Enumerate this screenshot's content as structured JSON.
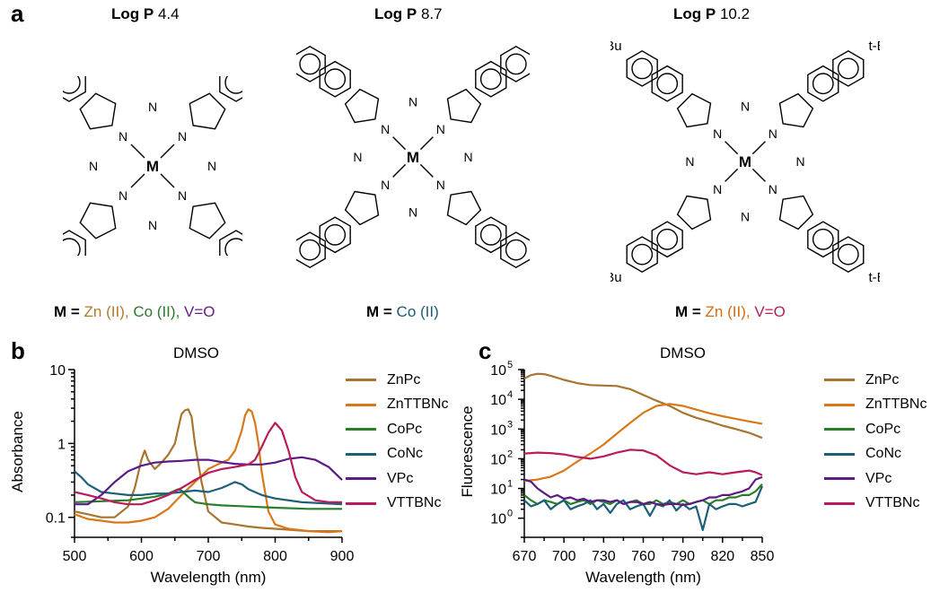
{
  "panels": {
    "a": "a",
    "b": "b",
    "c": "c"
  },
  "molecules": [
    {
      "logp_label": "Log P",
      "logp_value": "4.4",
      "metal": "M",
      "metals_prefix": "M =",
      "metals": [
        {
          "text": "Zn (II),",
          "color": "#b27a2d"
        },
        {
          "text": "Co (II),",
          "color": "#2b7a2b"
        },
        {
          "text": "V=O",
          "color": "#6a1b8a"
        }
      ]
    },
    {
      "logp_label": "Log P",
      "logp_value": "8.7",
      "metal": "M",
      "metals_prefix": "M =",
      "metals": [
        {
          "text": "Co (II)",
          "color": "#1c5a78"
        }
      ]
    },
    {
      "logp_label": "Log P",
      "logp_value": "10.2",
      "metal": "M",
      "metals_prefix": "M =",
      "substituent": "t-Bu",
      "metals": [
        {
          "text": "Zn (II),",
          "color": "#d46b0f"
        },
        {
          "text": "V=O",
          "color": "#b01f5a"
        }
      ]
    }
  ],
  "atom_label_n": "N",
  "chart_data": [
    {
      "type": "line",
      "title": "DMSO",
      "xlabel": "Wavelength (nm)",
      "ylabel": "Absorbance",
      "yscale": "log",
      "xlim": [
        500,
        900
      ],
      "ylim": [
        0.06,
        10
      ],
      "xticks": [
        "500",
        "600",
        "700",
        "800",
        "900"
      ],
      "yticks": [
        {
          "v": 0.1,
          "label": "0.1"
        },
        {
          "v": 1,
          "label": "1"
        },
        {
          "v": 10,
          "label": "10"
        }
      ],
      "legend_position": "right",
      "series": [
        {
          "name": "ZnPc",
          "color": "#a8742f",
          "x": [
            500,
            520,
            540,
            560,
            580,
            590,
            600,
            605,
            610,
            620,
            630,
            640,
            650,
            655,
            660,
            665,
            670,
            675,
            680,
            690,
            700,
            720,
            740,
            760,
            780,
            800,
            820,
            850,
            880,
            900
          ],
          "y": [
            0.12,
            0.11,
            0.1,
            0.1,
            0.14,
            0.25,
            0.6,
            0.8,
            0.6,
            0.45,
            0.55,
            0.7,
            1.0,
            1.6,
            2.5,
            2.8,
            2.9,
            2.3,
            1.0,
            0.3,
            0.12,
            0.085,
            0.08,
            0.075,
            0.072,
            0.07,
            0.068,
            0.065,
            0.065,
            0.065
          ]
        },
        {
          "name": "ZnTTBNc",
          "color": "#d9781b",
          "x": [
            500,
            520,
            540,
            560,
            580,
            600,
            620,
            640,
            660,
            680,
            700,
            710,
            720,
            730,
            740,
            750,
            755,
            760,
            765,
            770,
            775,
            780,
            790,
            800,
            820,
            850,
            880,
            900
          ],
          "y": [
            0.11,
            0.095,
            0.09,
            0.085,
            0.085,
            0.09,
            0.1,
            0.13,
            0.2,
            0.3,
            0.45,
            0.5,
            0.55,
            0.6,
            0.8,
            1.5,
            2.4,
            2.9,
            2.7,
            1.9,
            1.0,
            0.4,
            0.12,
            0.08,
            0.07,
            0.065,
            0.063,
            0.065
          ]
        },
        {
          "name": "CoPc",
          "color": "#2a7d2a",
          "x": [
            500,
            540,
            580,
            620,
            640,
            655,
            660,
            670,
            680,
            700,
            720,
            760,
            800,
            850,
            900
          ],
          "y": [
            0.16,
            0.165,
            0.17,
            0.19,
            0.21,
            0.24,
            0.23,
            0.19,
            0.16,
            0.15,
            0.145,
            0.14,
            0.135,
            0.13,
            0.13
          ]
        },
        {
          "name": "CoNc",
          "color": "#1c5f78",
          "x": [
            500,
            510,
            520,
            540,
            560,
            580,
            600,
            620,
            640,
            660,
            680,
            700,
            720,
            740,
            750,
            760,
            780,
            800,
            840,
            900
          ],
          "y": [
            0.42,
            0.35,
            0.28,
            0.22,
            0.21,
            0.2,
            0.2,
            0.21,
            0.21,
            0.22,
            0.23,
            0.22,
            0.25,
            0.3,
            0.28,
            0.24,
            0.2,
            0.18,
            0.16,
            0.15
          ]
        },
        {
          "name": "VPc",
          "color": "#5c1a85",
          "x": [
            500,
            520,
            540,
            560,
            580,
            600,
            620,
            640,
            660,
            680,
            700,
            720,
            740,
            760,
            780,
            800,
            820,
            840,
            860,
            880,
            900
          ],
          "y": [
            0.15,
            0.15,
            0.2,
            0.3,
            0.42,
            0.5,
            0.55,
            0.57,
            0.58,
            0.6,
            0.6,
            0.56,
            0.53,
            0.52,
            0.52,
            0.55,
            0.62,
            0.65,
            0.6,
            0.48,
            0.32
          ]
        },
        {
          "name": "VTTBNc",
          "color": "#b81c5c",
          "x": [
            500,
            520,
            540,
            560,
            580,
            600,
            620,
            640,
            660,
            680,
            700,
            720,
            740,
            760,
            770,
            780,
            790,
            800,
            810,
            820,
            830,
            840,
            860,
            880,
            900
          ],
          "y": [
            0.22,
            0.2,
            0.18,
            0.16,
            0.15,
            0.15,
            0.17,
            0.2,
            0.25,
            0.32,
            0.4,
            0.45,
            0.48,
            0.52,
            0.6,
            0.9,
            1.4,
            1.9,
            1.5,
            0.8,
            0.35,
            0.22,
            0.17,
            0.16,
            0.16
          ]
        }
      ]
    },
    {
      "type": "line",
      "title": "DMSO",
      "xlabel": "Wavelength (nm)",
      "ylabel": "Fluorescence",
      "yscale": "log",
      "xlim": [
        670,
        850
      ],
      "ylim": [
        0.3,
        100000
      ],
      "xticks": [
        "670",
        "700",
        "730",
        "760",
        "790",
        "820",
        "850"
      ],
      "yticks": [
        {
          "v": 1,
          "base": "10",
          "exp": "0"
        },
        {
          "v": 10,
          "base": "10",
          "exp": "1"
        },
        {
          "v": 100,
          "base": "10",
          "exp": "2"
        },
        {
          "v": 1000,
          "base": "10",
          "exp": "3"
        },
        {
          "v": 10000,
          "base": "10",
          "exp": "4"
        },
        {
          "v": 100000,
          "base": "10",
          "exp": "5"
        }
      ],
      "legend_position": "right",
      "series": [
        {
          "name": "ZnPc",
          "color": "#a8742f",
          "x": [
            670,
            675,
            680,
            685,
            690,
            700,
            710,
            720,
            730,
            740,
            750,
            760,
            770,
            780,
            790,
            800,
            810,
            820,
            830,
            840,
            850
          ],
          "y": [
            50000,
            65000,
            72000,
            70000,
            62000,
            45000,
            35000,
            30000,
            29000,
            28000,
            22000,
            14000,
            9000,
            6000,
            3500,
            2400,
            1800,
            1300,
            1000,
            750,
            500
          ]
        },
        {
          "name": "ZnTTBNc",
          "color": "#d9781b",
          "x": [
            670,
            680,
            690,
            700,
            710,
            720,
            730,
            740,
            750,
            760,
            770,
            780,
            790,
            800,
            810,
            820,
            830,
            840,
            850
          ],
          "y": [
            18,
            20,
            25,
            40,
            80,
            150,
            300,
            700,
            1600,
            3500,
            6000,
            7000,
            6000,
            4500,
            3400,
            2700,
            2200,
            1800,
            1500
          ]
        },
        {
          "name": "CoPc",
          "color": "#2a7d2a",
          "x": [
            670,
            675,
            680,
            685,
            690,
            695,
            700,
            705,
            710,
            715,
            720,
            725,
            730,
            735,
            740,
            745,
            750,
            755,
            760,
            765,
            770,
            775,
            780,
            785,
            790,
            795,
            800,
            805,
            810,
            815,
            820,
            825,
            830,
            835,
            840,
            845,
            850
          ],
          "y": [
            6,
            4,
            3,
            4,
            3.5,
            3,
            4,
            3,
            3.5,
            4,
            3,
            4,
            3.5,
            3,
            4,
            3,
            3.5,
            4,
            3,
            3,
            4,
            3,
            3.5,
            3,
            4,
            3,
            3.5,
            4,
            3,
            4,
            4,
            5,
            5,
            6,
            6,
            8,
            14
          ]
        },
        {
          "name": "CoNc",
          "color": "#1c5f78",
          "x": [
            670,
            675,
            680,
            685,
            690,
            695,
            700,
            705,
            710,
            715,
            720,
            725,
            730,
            735,
            740,
            745,
            750,
            755,
            760,
            765,
            770,
            775,
            780,
            785,
            790,
            795,
            800,
            805,
            810,
            815,
            820,
            825,
            830,
            835,
            840,
            845,
            850
          ],
          "y": [
            4,
            2.5,
            3,
            4,
            2,
            3,
            4,
            2,
            2.5,
            3,
            4,
            2,
            3,
            1.5,
            3,
            4,
            2,
            2.5,
            3,
            1.2,
            3,
            2.5,
            4,
            1.8,
            3,
            2,
            2.5,
            0.4,
            3,
            2,
            2.5,
            3,
            3,
            2.5,
            3,
            3.5,
            12
          ]
        },
        {
          "name": "VPc",
          "color": "#5c1a85",
          "x": [
            670,
            675,
            680,
            685,
            690,
            695,
            700,
            705,
            710,
            715,
            720,
            725,
            730,
            735,
            740,
            745,
            750,
            755,
            760,
            765,
            770,
            775,
            780,
            785,
            790,
            795,
            800,
            805,
            810,
            815,
            820,
            825,
            830,
            835,
            840,
            845,
            850
          ],
          "y": [
            20,
            17,
            10,
            7,
            5,
            6,
            4.5,
            5,
            4,
            4.5,
            3.5,
            4,
            4,
            3.5,
            4,
            3,
            3.5,
            3.5,
            3,
            3.5,
            3,
            2.8,
            3,
            3,
            2.8,
            3,
            3.5,
            4,
            5,
            5,
            6,
            6,
            7,
            8,
            10,
            20,
            24
          ]
        },
        {
          "name": "VTTBNc",
          "color": "#b81c5c",
          "x": [
            670,
            680,
            690,
            700,
            710,
            720,
            730,
            740,
            750,
            760,
            770,
            780,
            790,
            800,
            810,
            820,
            830,
            840,
            845,
            850
          ],
          "y": [
            150,
            160,
            155,
            140,
            115,
            100,
            120,
            160,
            200,
            190,
            130,
            60,
            35,
            30,
            35,
            30,
            35,
            40,
            35,
            28
          ]
        }
      ]
    }
  ]
}
